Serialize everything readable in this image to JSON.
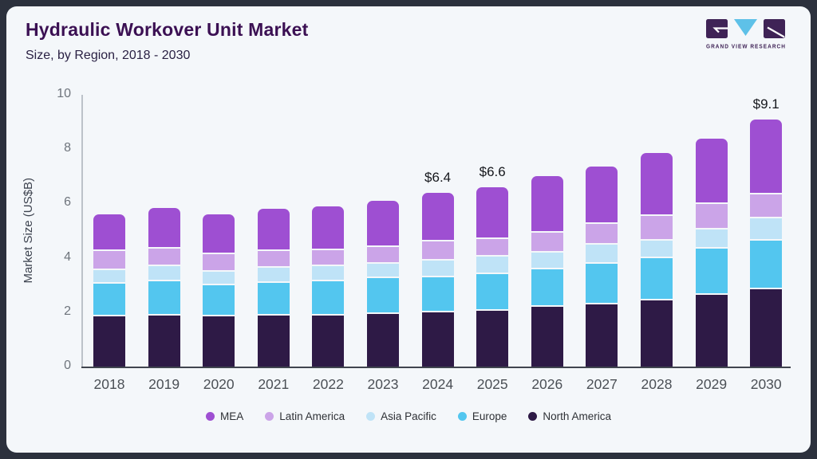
{
  "header": {
    "title": "Hydraulic Workover Unit Market",
    "subtitle": "Size, by Region, 2018 - 2030",
    "title_color": "#3b1053"
  },
  "logo": {
    "text": "GRAND VIEW RESEARCH",
    "dark_color": "#3f2356",
    "accent_color": "#5ec1e8"
  },
  "chart_data": {
    "type": "bar",
    "stacked": true,
    "title": "Hydraulic Workover Unit Market Size, by Region, 2018 - 2030",
    "xlabel": "",
    "ylabel": "Market Size (US$B)",
    "ylim": [
      0,
      10
    ],
    "yticks": [
      0,
      2,
      4,
      6,
      8,
      10
    ],
    "grid": false,
    "legend_position": "bottom",
    "categories": [
      "2018",
      "2019",
      "2020",
      "2021",
      "2022",
      "2023",
      "2024",
      "2025",
      "2026",
      "2027",
      "2028",
      "2029",
      "2030"
    ],
    "series": [
      {
        "name": "North America",
        "color": "#2e1a46",
        "values": [
          1.9,
          1.95,
          1.9,
          1.95,
          1.95,
          2.0,
          2.05,
          2.1,
          2.25,
          2.35,
          2.5,
          2.7,
          2.9
        ]
      },
      {
        "name": "Europe",
        "color": "#53c6ef",
        "values": [
          1.2,
          1.25,
          1.15,
          1.2,
          1.25,
          1.3,
          1.3,
          1.35,
          1.4,
          1.5,
          1.55,
          1.7,
          1.8
        ]
      },
      {
        "name": "Asia Pacific",
        "color": "#bfe3f7",
        "values": [
          0.5,
          0.55,
          0.5,
          0.55,
          0.55,
          0.55,
          0.6,
          0.65,
          0.6,
          0.7,
          0.65,
          0.7,
          0.8
        ]
      },
      {
        "name": "Latin America",
        "color": "#cba4e8",
        "values": [
          0.7,
          0.65,
          0.65,
          0.6,
          0.6,
          0.6,
          0.7,
          0.65,
          0.75,
          0.75,
          0.9,
          0.95,
          0.9
        ]
      },
      {
        "name": "MEA",
        "color": "#9e4fd2",
        "values": [
          1.3,
          1.45,
          1.4,
          1.5,
          1.55,
          1.65,
          1.75,
          1.85,
          2.0,
          2.05,
          2.25,
          2.35,
          2.7
        ]
      }
    ],
    "totals": [
      5.6,
      5.85,
      5.6,
      5.8,
      5.9,
      6.1,
      6.4,
      6.6,
      7.0,
      7.35,
      7.85,
      8.4,
      9.1
    ],
    "data_labels": {
      "2024": "$6.4",
      "2025": "$6.6",
      "2030": "$9.1"
    },
    "legend_order": [
      "MEA",
      "Latin America",
      "Asia Pacific",
      "Europe",
      "North America"
    ]
  }
}
